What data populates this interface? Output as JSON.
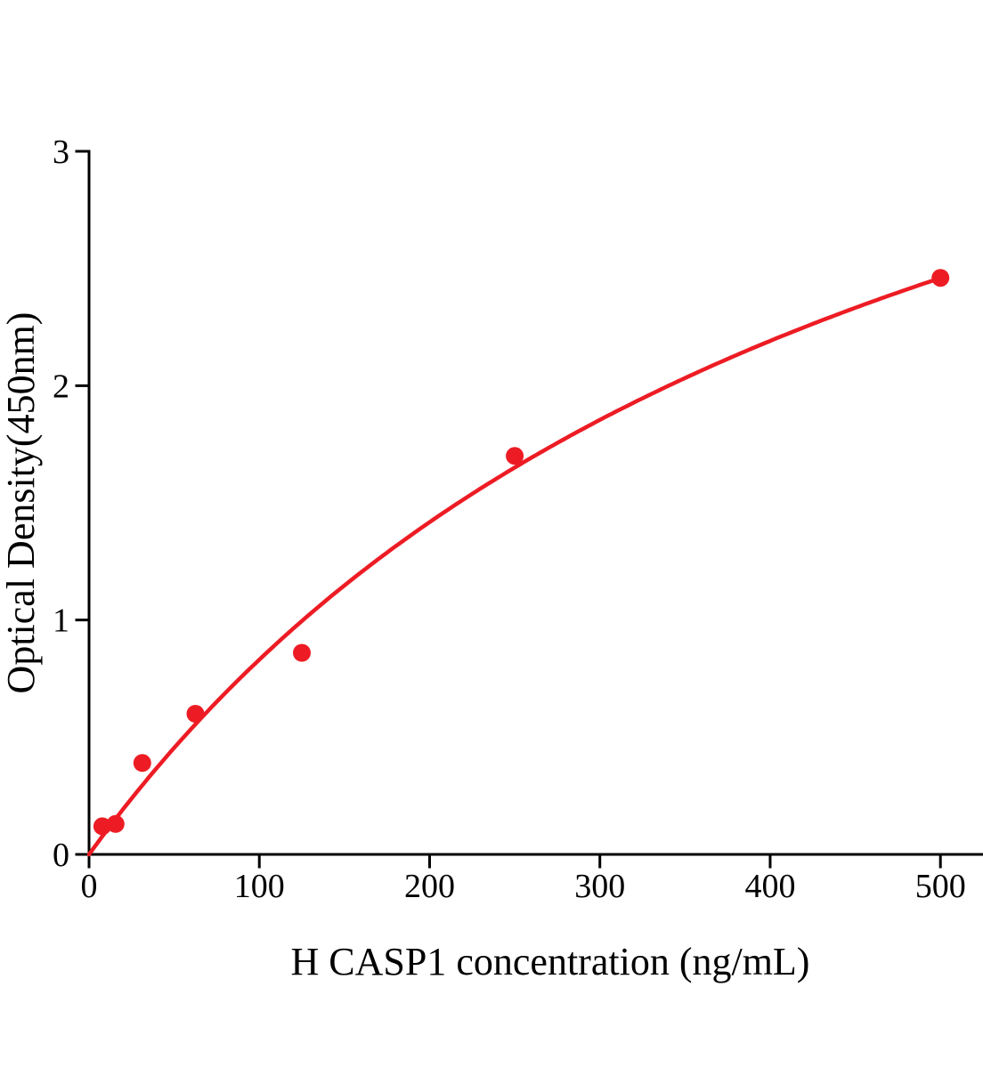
{
  "chart_data": {
    "type": "scatter",
    "title": "",
    "xlabel": "H CASP1 concentration (ng/mL)",
    "ylabel": "Optical Density(450nm)",
    "x": [
      7.8,
      15.6,
      31.25,
      62.5,
      125,
      250,
      500
    ],
    "y": [
      0.12,
      0.13,
      0.39,
      0.6,
      0.86,
      1.7,
      2.46
    ],
    "xlim": [
      0,
      525
    ],
    "ylim": [
      0,
      3
    ],
    "xticks": [
      0,
      100,
      200,
      300,
      400,
      500
    ],
    "yticks": [
      0,
      1,
      2,
      3
    ],
    "grid": false,
    "legend_position": "none",
    "marker_color": "#ed1c24",
    "line_color": "#ed1c24",
    "axis_color": "#000000",
    "trendline": {
      "model": "saturation y = a*x/(b+x)",
      "a": 4.82,
      "b": 480
    }
  }
}
